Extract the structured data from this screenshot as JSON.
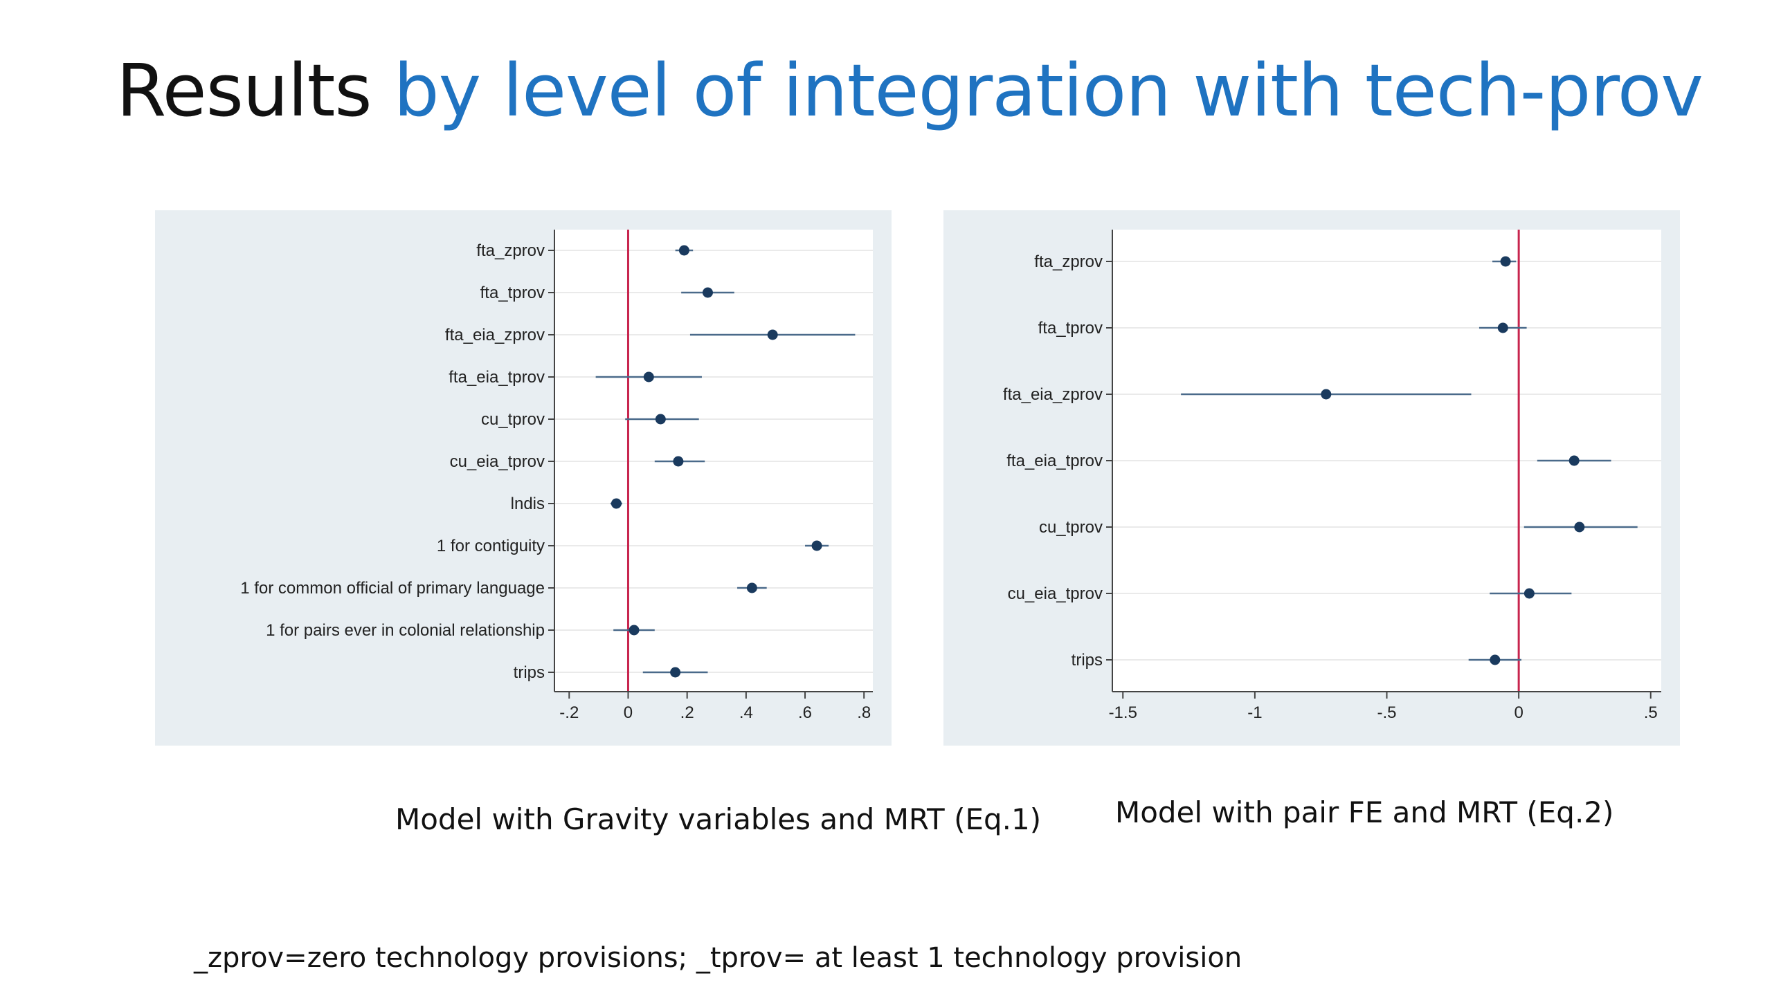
{
  "slide": {
    "title_plain": "Results",
    "title_accent": "by level of integration with tech-prov",
    "footnote": "_zprov=zero technology provisions; _tprov= at least 1 technology provision"
  },
  "colors": {
    "accent": "#1f73c1",
    "panel_bg": "#e8eef2",
    "plot_bg": "#ffffff",
    "marker": "#1a3a5e",
    "ci_line": "#4a6a8a",
    "reference_line": "#c8254e"
  },
  "chart_data": [
    {
      "type": "scatter",
      "caption": "Model with Gravity variables and MRT (Eq.1)",
      "reference_line_x": 0,
      "xlim": [
        -0.25,
        0.83
      ],
      "xticks": [
        -0.2,
        0,
        0.2,
        0.4,
        0.6,
        0.8
      ],
      "xtick_labels": [
        "-.2",
        "0",
        ".2",
        ".4",
        ".6",
        ".8"
      ],
      "grid": true,
      "items": [
        {
          "label": "fta_zprov",
          "estimate": 0.19,
          "ci": [
            0.16,
            0.22
          ]
        },
        {
          "label": "fta_tprov",
          "estimate": 0.27,
          "ci": [
            0.18,
            0.36
          ]
        },
        {
          "label": "fta_eia_zprov",
          "estimate": 0.49,
          "ci": [
            0.21,
            0.77
          ]
        },
        {
          "label": "fta_eia_tprov",
          "estimate": 0.07,
          "ci": [
            -0.11,
            0.25
          ]
        },
        {
          "label": "cu_tprov",
          "estimate": 0.11,
          "ci": [
            -0.01,
            0.24
          ]
        },
        {
          "label": "cu_eia_tprov",
          "estimate": 0.17,
          "ci": [
            0.09,
            0.26
          ]
        },
        {
          "label": "lndis",
          "estimate": -0.04,
          "ci": [
            -0.06,
            -0.02
          ]
        },
        {
          "label": "1 for contiguity",
          "estimate": 0.64,
          "ci": [
            0.6,
            0.68
          ]
        },
        {
          "label": "1 for common official of primary language",
          "estimate": 0.42,
          "ci": [
            0.37,
            0.47
          ]
        },
        {
          "label": "1 for pairs ever in colonial relationship",
          "estimate": 0.02,
          "ci": [
            -0.05,
            0.09
          ]
        },
        {
          "label": "trips",
          "estimate": 0.16,
          "ci": [
            0.05,
            0.27
          ]
        }
      ]
    },
    {
      "type": "scatter",
      "caption": "Model with pair FE and MRT (Eq.2)",
      "reference_line_x": 0,
      "xlim": [
        -1.54,
        0.54
      ],
      "xticks": [
        -1.5,
        -1,
        -0.5,
        0,
        0.5
      ],
      "xtick_labels": [
        "-1.5",
        "-1",
        "-.5",
        "0",
        ".5"
      ],
      "grid": true,
      "items": [
        {
          "label": "fta_zprov",
          "estimate": -0.05,
          "ci": [
            -0.1,
            -0.01
          ]
        },
        {
          "label": "fta_tprov",
          "estimate": -0.06,
          "ci": [
            -0.15,
            0.03
          ]
        },
        {
          "label": "fta_eia_zprov",
          "estimate": -0.73,
          "ci": [
            -1.28,
            -0.18
          ]
        },
        {
          "label": "fta_eia_tprov",
          "estimate": 0.21,
          "ci": [
            0.07,
            0.35
          ]
        },
        {
          "label": "cu_tprov",
          "estimate": 0.23,
          "ci": [
            0.02,
            0.45
          ]
        },
        {
          "label": "cu_eia_tprov",
          "estimate": 0.04,
          "ci": [
            -0.11,
            0.2
          ]
        },
        {
          "label": "trips",
          "estimate": -0.09,
          "ci": [
            -0.19,
            0.01
          ]
        }
      ]
    }
  ]
}
